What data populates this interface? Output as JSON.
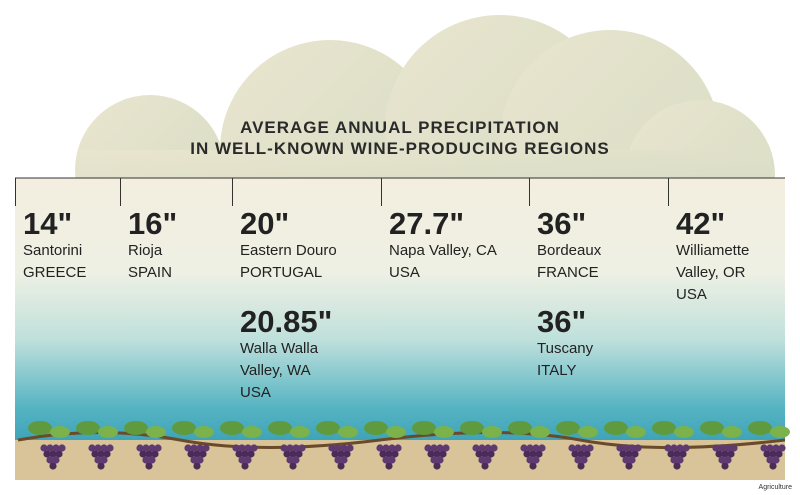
{
  "title": [
    "AVERAGE ANNUAL PRECIPITATION",
    "IN WELL-KNOWN WINE-PRODUCING REGIONS"
  ],
  "columns": [
    {
      "entries": [
        {
          "amount": "14\"",
          "lines": [
            "Santorini",
            "GREECE"
          ]
        }
      ]
    },
    {
      "entries": [
        {
          "amount": "16\"",
          "lines": [
            "Rioja",
            "SPAIN"
          ]
        }
      ]
    },
    {
      "entries": [
        {
          "amount": "20\"",
          "lines": [
            "Eastern Douro",
            "PORTUGAL"
          ]
        },
        {
          "amount": "20.85\"",
          "lines": [
            "Walla Walla",
            "Valley, WA",
            "USA"
          ]
        }
      ]
    },
    {
      "entries": [
        {
          "amount": "27.7\"",
          "lines": [
            "Napa Valley, CA",
            "USA"
          ]
        }
      ]
    },
    {
      "entries": [
        {
          "amount": "36\"",
          "lines": [
            "Bordeaux",
            "FRANCE"
          ]
        },
        {
          "amount": "36\"",
          "lines": [
            "Tuscany",
            "ITALY"
          ]
        }
      ]
    },
    {
      "entries": [
        {
          "amount": "42\"",
          "lines": [
            "Williamette",
            "Valley, OR",
            "USA"
          ]
        }
      ]
    }
  ],
  "credit": "Agriculture"
}
